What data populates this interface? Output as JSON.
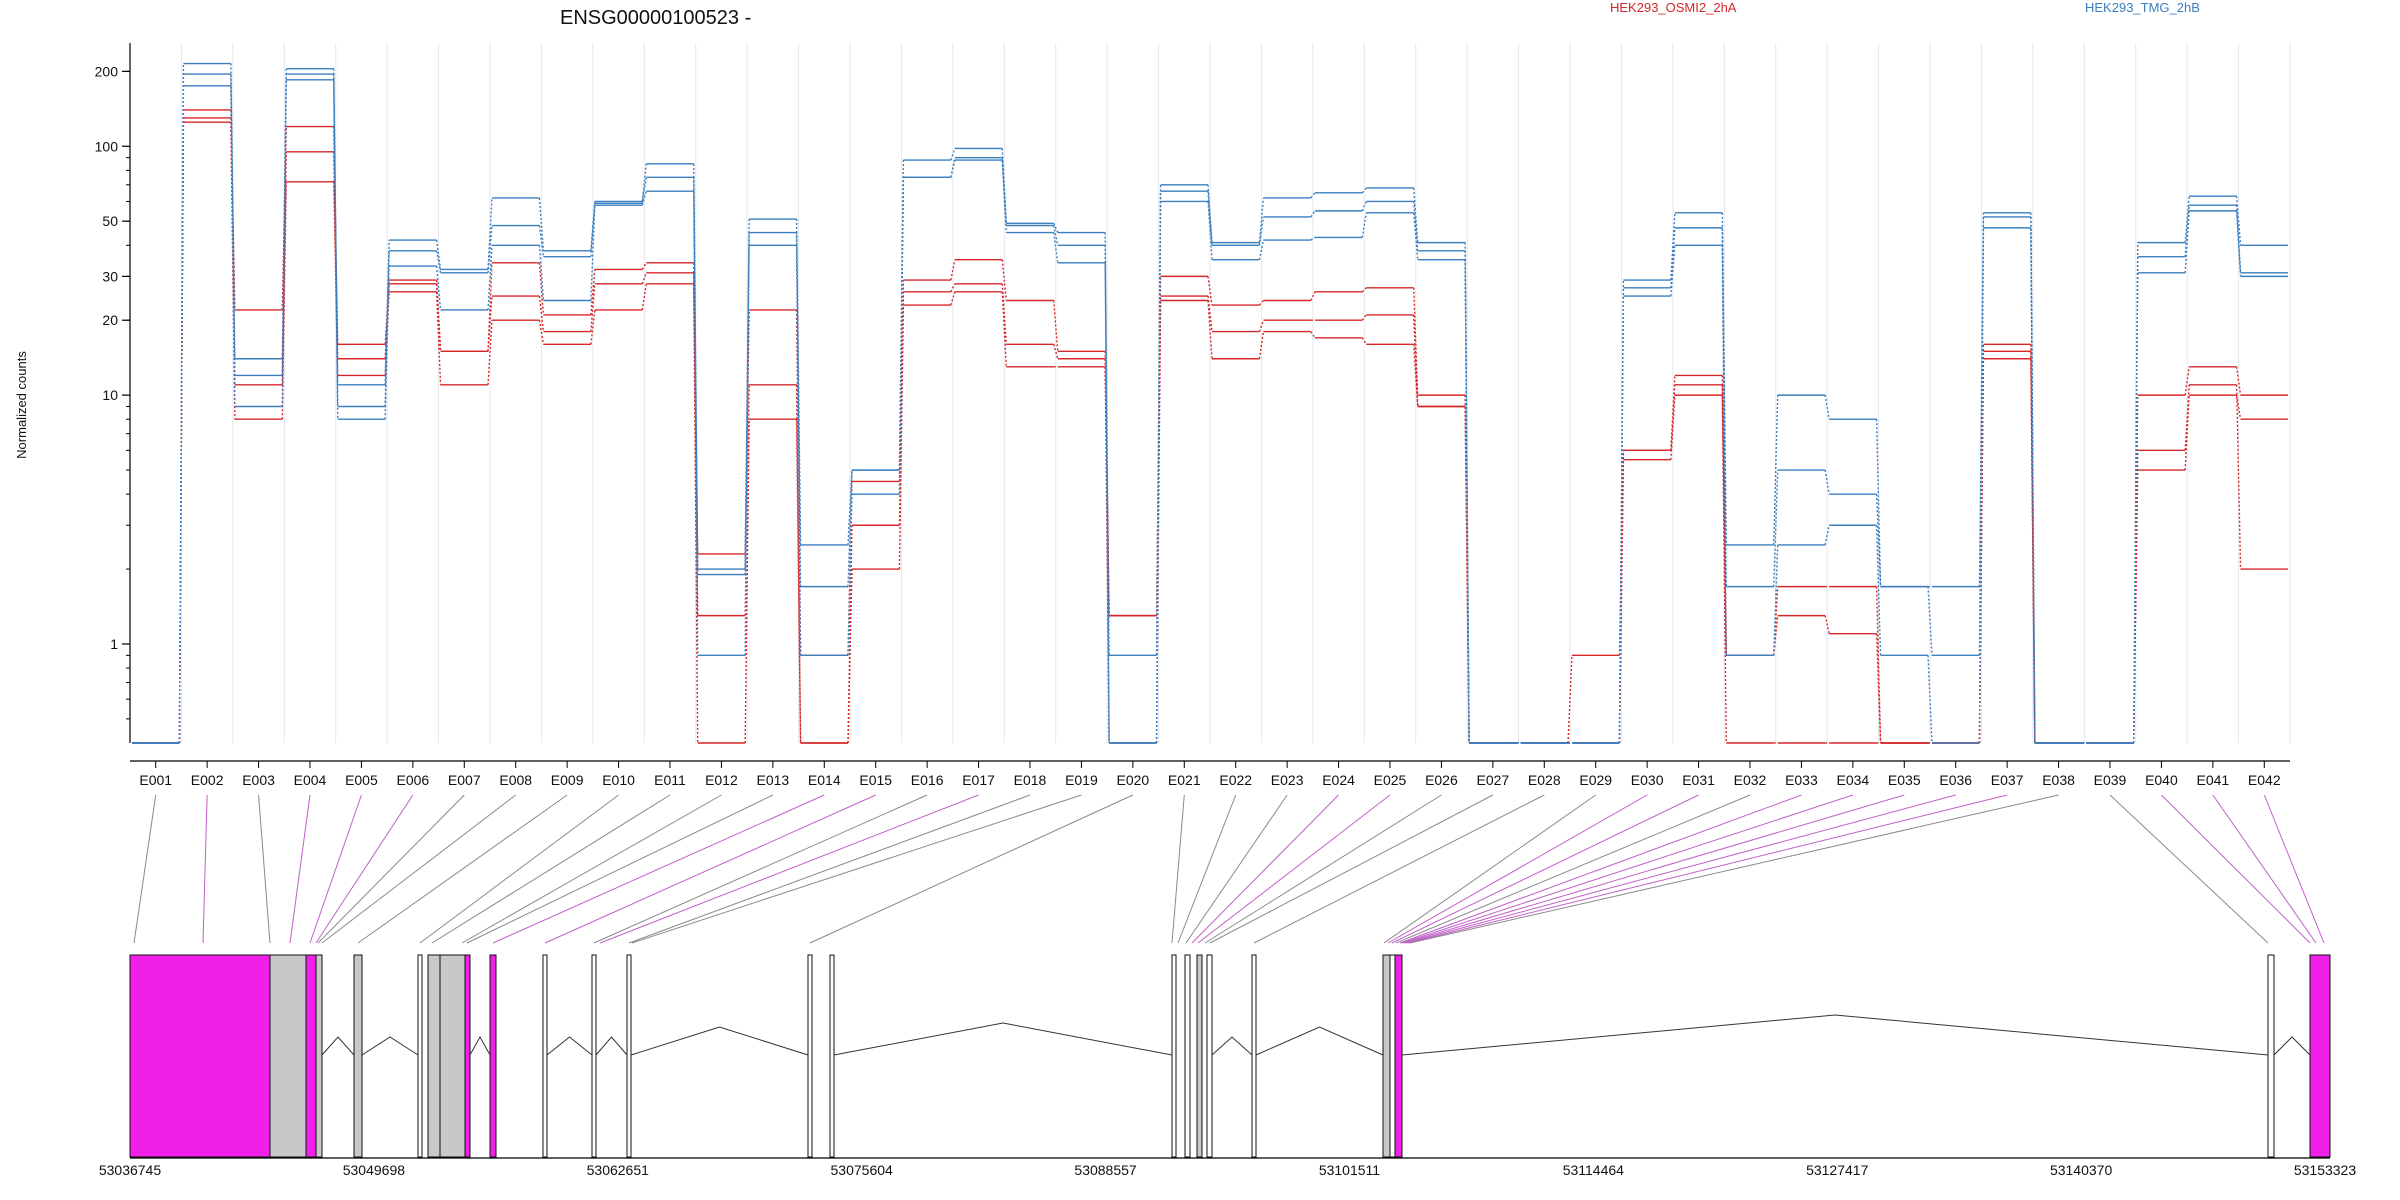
{
  "chart_data": {
    "type": "line",
    "title": "ENSG00000100523 -",
    "ylabel": "Normalized counts",
    "yscale": "log",
    "ylim": [
      0.4,
      260
    ],
    "yticks": [
      1,
      10,
      20,
      30,
      50,
      100,
      200
    ],
    "legend": [
      {
        "name": "HEK293_OSMI2_2hA",
        "color": "#d62728"
      },
      {
        "name": "HEK293_TMG_2hB",
        "color": "#3a7fbf"
      }
    ],
    "exons": [
      "E001",
      "E002",
      "E003",
      "E004",
      "E005",
      "E006",
      "E007",
      "E008",
      "E009",
      "E010",
      "E011",
      "E012",
      "E013",
      "E014",
      "E015",
      "E016",
      "E017",
      "E018",
      "E019",
      "E020",
      "E021",
      "E022",
      "E023",
      "E024",
      "E025",
      "E026",
      "E027",
      "E028",
      "E029",
      "E030",
      "E031",
      "E032",
      "E033",
      "E034",
      "E035",
      "E036",
      "E037",
      "E038",
      "E039",
      "E040",
      "E041",
      "E042"
    ],
    "series": [
      {
        "group": "HEK293_OSMI2_2hA",
        "color": "#d62728",
        "values": [
          0.4,
          140,
          22,
          120,
          16,
          29,
          15,
          34,
          21,
          32,
          34,
          2.3,
          22,
          0.9,
          4.5,
          29,
          35,
          24,
          15,
          1.3,
          30,
          23,
          24,
          26,
          27,
          10,
          0.4,
          0.4,
          0.9,
          6,
          12,
          0.9,
          1.7,
          1.7,
          0.4,
          0.4,
          16,
          0.4,
          0.4,
          10,
          13,
          10
        ]
      },
      {
        "group": "HEK293_OSMI2_2hA",
        "color": "#d62728",
        "values": [
          0.4,
          130,
          11,
          95,
          14,
          28,
          15,
          25,
          18,
          28,
          31,
          1.3,
          11,
          0.4,
          3,
          26,
          28,
          16,
          14,
          1.3,
          25,
          18,
          20,
          20,
          21,
          9,
          0.4,
          0.4,
          0.4,
          6,
          11,
          0.9,
          1.3,
          1.1,
          0.4,
          0.4,
          15,
          0.4,
          0.4,
          6,
          11,
          2
        ]
      },
      {
        "group": "HEK293_OSMI2_2hA",
        "color": "#d62728",
        "values": [
          0.4,
          125,
          8,
          72,
          12,
          26,
          11,
          20,
          16,
          22,
          28,
          0.4,
          8,
          0.4,
          2,
          23,
          26,
          13,
          13,
          0.4,
          24,
          14,
          18,
          17,
          16,
          9,
          0.4,
          0.4,
          0.4,
          5.5,
          10,
          0.4,
          0.4,
          0.4,
          0.4,
          0.4,
          14,
          0.4,
          0.4,
          5,
          10,
          8
        ]
      },
      {
        "group": "HEK293_TMG_2hB",
        "color": "#3a7fbf",
        "values": [
          0.4,
          215,
          14,
          205,
          11,
          42,
          32,
          62,
          38,
          60,
          85,
          2,
          51,
          2.5,
          5,
          88,
          98,
          49,
          45,
          0.9,
          70,
          41,
          62,
          65,
          68,
          41,
          0.4,
          0.4,
          0.4,
          29,
          54,
          2.5,
          10,
          8,
          1.7,
          1.7,
          54,
          0.4,
          0.4,
          41,
          63,
          40
        ]
      },
      {
        "group": "HEK293_TMG_2hB",
        "color": "#3a7fbf",
        "values": [
          0.4,
          195,
          12,
          195,
          9,
          38,
          31,
          48,
          36,
          59,
          75,
          1.9,
          45,
          1.7,
          5,
          75,
          90,
          48,
          40,
          0.4,
          66,
          40,
          52,
          55,
          60,
          38,
          0.4,
          0.4,
          0.4,
          27,
          47,
          1.7,
          5,
          4,
          1.7,
          0.9,
          52,
          0.4,
          0.4,
          36,
          58,
          31
        ]
      },
      {
        "group": "HEK293_TMG_2hB",
        "color": "#3a7fbf",
        "values": [
          0.4,
          175,
          9,
          185,
          8,
          33,
          22,
          40,
          24,
          58,
          66,
          0.9,
          40,
          0.9,
          4,
          75,
          88,
          45,
          34,
          0.4,
          60,
          35,
          42,
          43,
          54,
          35,
          0.4,
          0.4,
          0.4,
          25,
          40,
          0.9,
          2.5,
          3,
          0.9,
          0.4,
          47,
          0.4,
          0.4,
          31,
          55,
          30
        ]
      }
    ],
    "gene_model": {
      "coordinate_labels": [
        "53036745",
        "53049698",
        "53062651",
        "53075604",
        "53088557",
        "53101511",
        "53114464",
        "53127417",
        "53140370",
        "53153323"
      ]
    }
  }
}
